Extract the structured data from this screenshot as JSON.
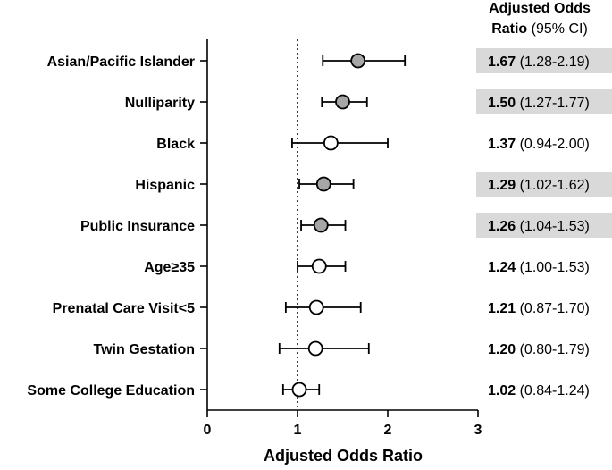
{
  "chart_data": {
    "type": "forest",
    "xlabel": "Adjusted Odds Ratio",
    "xlim": [
      0,
      3
    ],
    "xticks": [
      0,
      1,
      2,
      3
    ],
    "reference_line": 1,
    "column_header": {
      "line1": "Adjusted Odds",
      "line2_bold": "Ratio",
      "line2_rest": " (95% CI)"
    },
    "rows": [
      {
        "label": "Asian/Pacific Islander",
        "or": 1.67,
        "lo": 1.28,
        "hi": 2.19,
        "or_text": "1.67",
        "ci_text": "(1.28-2.19)",
        "significant": true
      },
      {
        "label": "Nulliparity",
        "or": 1.5,
        "lo": 1.27,
        "hi": 1.77,
        "or_text": "1.50",
        "ci_text": "(1.27-1.77)",
        "significant": true
      },
      {
        "label": "Black",
        "or": 1.37,
        "lo": 0.94,
        "hi": 2.0,
        "or_text": "1.37",
        "ci_text": "(0.94-2.00)",
        "significant": false
      },
      {
        "label": "Hispanic",
        "or": 1.29,
        "lo": 1.02,
        "hi": 1.62,
        "or_text": "1.29",
        "ci_text": "(1.02-1.62)",
        "significant": true
      },
      {
        "label": "Public Insurance",
        "or": 1.26,
        "lo": 1.04,
        "hi": 1.53,
        "or_text": "1.26",
        "ci_text": "(1.04-1.53)",
        "significant": true
      },
      {
        "label": "Age≥35",
        "or": 1.24,
        "lo": 1.0,
        "hi": 1.53,
        "or_text": "1.24",
        "ci_text": "(1.00-1.53)",
        "significant": false
      },
      {
        "label": "Prenatal Care Visit<5",
        "or": 1.21,
        "lo": 0.87,
        "hi": 1.7,
        "or_text": "1.21",
        "ci_text": "(0.87-1.70)",
        "significant": false
      },
      {
        "label": "Twin Gestation",
        "or": 1.2,
        "lo": 0.8,
        "hi": 1.79,
        "or_text": "1.20",
        "ci_text": "(0.80-1.79)",
        "significant": false
      },
      {
        "label": "Some College Education",
        "or": 1.02,
        "lo": 0.84,
        "hi": 1.24,
        "or_text": "1.02",
        "ci_text": "(0.84-1.24)",
        "significant": false
      }
    ],
    "colors": {
      "significant_marker": "#a6a6a6",
      "nonsignificant_marker": "#ffffff",
      "highlight_box": "#d9d9d9",
      "ink": "#000000"
    }
  }
}
